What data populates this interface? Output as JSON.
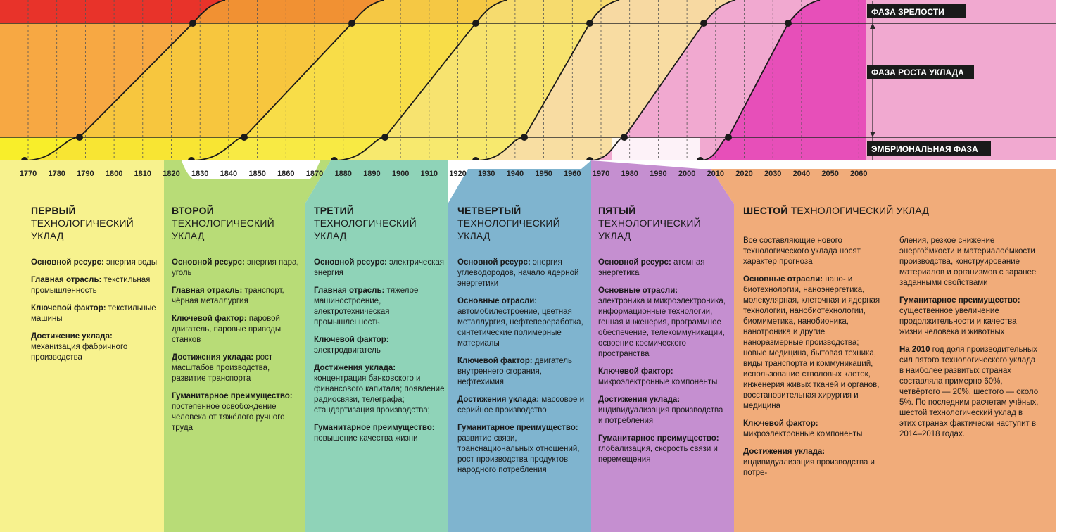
{
  "phases": {
    "maturity": "ФАЗА ЗРЕЛОСТИ",
    "growth": "ФАЗА РОСТА УКЛАДА",
    "embryonic": "ЭМБРИОНАЛЬНАЯ ФАЗА"
  },
  "years": [
    "1770",
    "1780",
    "1790",
    "1800",
    "1810",
    "1820",
    "1830",
    "1840",
    "1850",
    "1860",
    "1870",
    "1880",
    "1890",
    "1900",
    "1910",
    "1920",
    "1930",
    "1940",
    "1950",
    "1960",
    "1970",
    "1980",
    "1990",
    "2000",
    "2010",
    "2020",
    "2030",
    "2040",
    "2050",
    "2060"
  ],
  "colors": {
    "top_band": "#e8332a",
    "orange_band": "#f7a843",
    "yellow_band": "#f8ee2a",
    "p1": "#f7f28e",
    "p2": "#b8dc77",
    "p3": "#8fd3b8",
    "p4": "#7fb4cf",
    "p5": "#c58fd0",
    "p6": "#f1ac7a"
  },
  "p1": {
    "head1": "ПЕРВЫЙ",
    "head2": "ТЕХНОЛОГИЧЕСКИЙ",
    "head3": "УКЛАД",
    "i1_label": "Основной ресурс:",
    "i1_text": " энергия воды",
    "i2_label": "Главная отрасль:",
    "i2_text": " текстильная промышленность",
    "i3_label": "Ключевой фактор:",
    "i3_text": " текстильные машины",
    "i4_label": "Достижение уклада:",
    "i4_text": " механизация фабричного производства"
  },
  "p2": {
    "head1": "ВТОРОЙ",
    "head2": "ТЕХНОЛОГИЧЕСКИЙ",
    "head3": "УКЛАД",
    "i1_label": "Основной ресурс:",
    "i1_text": " энергия пара, уголь",
    "i2_label": "Главная отрасль:",
    "i2_text": " транспорт, чёрная металлургия",
    "i3_label": "Ключевой фактор:",
    "i3_text": " паровой двигатель, паровые приводы станков",
    "i4_label": "Достижения уклада:",
    "i4_text": " рост масштабов производства, развитие транспорта",
    "i5_label": "Гуманитарное преимущество:",
    "i5_text": " постепенное освобождение человека от тяжёлого ручного труда"
  },
  "p3": {
    "head1": "ТРЕТИЙ",
    "head2": "ТЕХНОЛОГИЧЕСКИЙ",
    "head3": "УКЛАД",
    "i1_label": "Основной ресурс:",
    "i1_text": " электрическая энергия",
    "i2_label": "Главная отрасль:",
    "i2_text": " тяжелое машиностроение, электротехническая промышленность",
    "i3_label": "Ключевой фактор:",
    "i3_text": " электродвигатель",
    "i4_label": "Достижения уклада:",
    "i4_text": " концентрация банковского и финансового капитала; появление радиосвязи, телеграфа; стандартизация производства;",
    "i5_label": "Гуманитарное преимущество:",
    "i5_text": " повышение качества жизни"
  },
  "p4": {
    "head1": "ЧЕТВЕРТЫЙ",
    "head2": "ТЕХНОЛОГИЧЕСКИЙ",
    "head3": "УКЛАД",
    "i1_label": "Основной ресурс:",
    "i1_text": " энергия углеводородов, начало ядерной энергетики",
    "i2_label": "Основные отрасли:",
    "i2_text": " автомобилестроение, цветная металлургия, нефтепереработка, синтетические полимерные материалы",
    "i3_label": "Ключевой фактор:",
    "i3_text": " двигатель внутреннего сгорания, нефтехимия",
    "i4_label": "Достижения уклада:",
    "i4_text": " массовое и серийное производство",
    "i5_label": "Гуманитарное преимущество:",
    "i5_text": " развитие связи, транснациональных отношений, рост производства продуктов народного потребления"
  },
  "p5": {
    "head1": "ПЯТЫЙ",
    "head2": "ТЕХНОЛОГИЧЕСКИЙ",
    "head3": "УКЛАД",
    "i1_label": "Основной ресурс:",
    "i1_text": " атомная энергетика",
    "i2_label": "Основные отрасли:",
    "i2_text": " электроника и микроэлектроника, информационные технологии, генная инженерия, программное обеспечение, телекоммуникации, освоение космического пространства",
    "i3_label": "Ключевой фактор:",
    "i3_text": " микроэлектронные компоненты",
    "i4_label": "Достижения уклада:",
    "i4_text": " индивидуализация производства и потребления",
    "i5_label": "Гуманитарное преимущество:",
    "i5_text": " глобализация, скорость связи и перемещения"
  },
  "p6": {
    "head_bold": "ШЕСТОЙ",
    "head_rest": " ТЕХНОЛОГИЧЕСКИЙ УКЛАД",
    "intro": "Все составляющие нового технологического уклада носят характер прогноза",
    "i1_label": "Основные отрасли:",
    "i1_text": " нано- и биотехнологии, наноэнергетика, молекулярная, клеточная и ядерная технологии, нанобиотехнологии, биомиметика, нанобионика, нанотроника и другие наноразмерные производства; новые медицина, бытовая техника, виды транспорта и коммуникаций, использование стволовых клеток, инженерия живых тканей и органов, восстановительная хирургия и медицина",
    "i2_label": "Ключевой фактор:",
    "i2_text": " микроэлектронные компоненты",
    "i3_label": "Достижения уклада:",
    "i3_text": " индивидуализация производства и потре-",
    "c2_cont": "бления, резкое снижение энергоёмкости и материалоёмкости производства, конструирование материалов и организмов с заранее заданными свойствами",
    "i4_label": "Гуманитарное преимущество:",
    "i4_text": " существенное увеличение продолжительности и качества жизни человека и животных",
    "i5_label": "На 2010",
    "i5_text": " год доля производительных сил пятого технологического уклада в наиболее развитых странах составляла примерно 60%, четвёртого — 20%, шестого — около 5%. По последним расчетам учёных, шестой технологический уклад в этих странах фактически наступит в 2014–2018 годах."
  }
}
